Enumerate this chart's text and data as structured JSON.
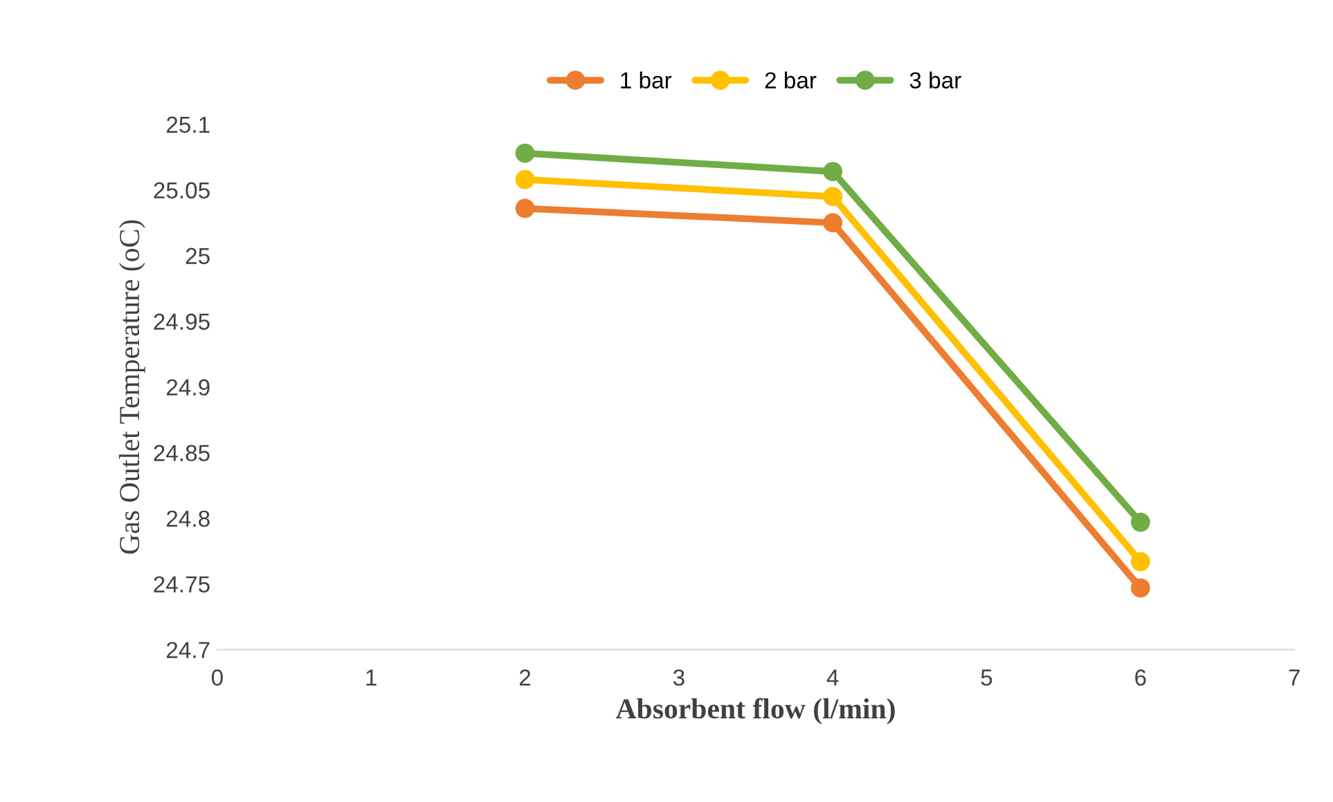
{
  "chart_data": {
    "type": "line",
    "xlabel": "Absorbent flow (l/min)",
    "ylabel": "Gas Outlet Temperature (oC)",
    "x": [
      2,
      4,
      6
    ],
    "series": [
      {
        "name": "1 bar",
        "color": "#ed7d31",
        "values": [
          25.036,
          25.025,
          24.747
        ]
      },
      {
        "name": "2 bar",
        "color": "#ffc000",
        "values": [
          25.058,
          25.045,
          24.767
        ]
      },
      {
        "name": "3 bar",
        "color": "#70ad47",
        "values": [
          25.078,
          25.064,
          24.797
        ]
      }
    ],
    "xlim": [
      0,
      7
    ],
    "xticks": [
      0,
      1,
      2,
      3,
      4,
      5,
      6,
      7
    ],
    "ylim": [
      24.7,
      25.1
    ],
    "yticks": [
      24.7,
      24.75,
      24.8,
      24.85,
      24.9,
      24.95,
      25,
      25.05,
      25.1
    ],
    "grid": false,
    "legend": "top",
    "marker": "circle",
    "line_style": "solid"
  }
}
